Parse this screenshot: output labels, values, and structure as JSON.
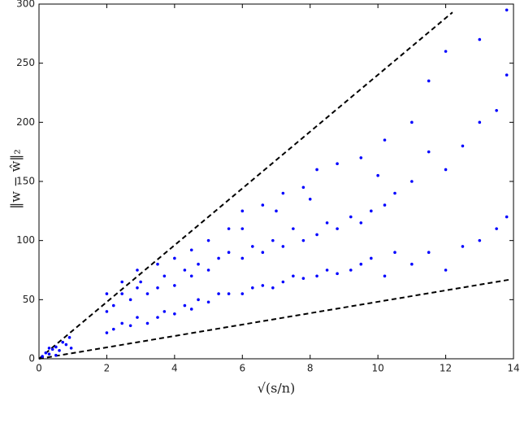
{
  "chart_data": {
    "type": "scatter",
    "xlabel": "√(s/n)",
    "ylabel": "‖w − ŵ‖₂",
    "color": "#0000ff",
    "x": [
      0.1,
      0.2,
      0.3,
      0.4,
      0.5,
      0.6,
      0.7,
      0.8,
      0.9,
      0.95,
      0.5,
      0.3,
      2.0,
      2.0,
      2.0,
      2.2,
      2.2,
      2.45,
      2.45,
      2.45,
      2.7,
      2.7,
      2.9,
      2.9,
      2.9,
      3.2,
      3.2,
      3.5,
      3.5,
      3.5,
      3.7,
      3.7,
      4.0,
      4.0,
      4.0,
      4.3,
      4.3,
      4.5,
      4.5,
      4.5,
      4.7,
      4.7,
      5.0,
      5.0,
      5.0,
      5.3,
      5.3,
      5.6,
      5.6,
      5.6,
      6.0,
      6.0,
      6.0,
      6.3,
      6.3,
      6.6,
      6.6,
      6.6,
      6.9,
      6.9,
      7.2,
      7.2,
      7.2,
      7.5,
      7.5,
      7.8,
      7.8,
      7.8,
      8.2,
      8.2,
      8.2,
      8.5,
      8.5,
      8.8,
      8.8,
      8.8,
      9.2,
      9.2,
      9.5,
      9.5,
      9.5,
      9.8,
      9.8,
      10.2,
      10.2,
      10.2,
      10.5,
      10.5,
      11,
      11,
      11,
      11.5,
      11.5,
      11.5,
      12,
      12,
      12,
      12.5,
      12.5,
      13,
      13,
      13,
      13.5,
      13.5,
      13.8,
      13.8,
      13.8,
      6.0,
      8.0,
      10.0,
      3.0,
      7.0
    ],
    "values": [
      2,
      5,
      4,
      8,
      10,
      7,
      14,
      12,
      18,
      9,
      3,
      9,
      22,
      40,
      55,
      25,
      45,
      30,
      55,
      65,
      28,
      50,
      35,
      60,
      75,
      30,
      55,
      35,
      60,
      80,
      40,
      70,
      38,
      62,
      85,
      45,
      75,
      42,
      70,
      92,
      50,
      80,
      48,
      75,
      100,
      55,
      85,
      55,
      90,
      110,
      55,
      85,
      125,
      60,
      95,
      62,
      90,
      130,
      60,
      100,
      65,
      95,
      140,
      70,
      110,
      68,
      100,
      145,
      70,
      105,
      160,
      75,
      115,
      72,
      110,
      165,
      75,
      120,
      80,
      115,
      170,
      85,
      125,
      70,
      130,
      185,
      90,
      140,
      80,
      150,
      200,
      90,
      175,
      235,
      75,
      160,
      260,
      95,
      180,
      100,
      200,
      270,
      110,
      210,
      120,
      240,
      295,
      110,
      135,
      155,
      65,
      125
    ],
    "lines": [
      {
        "x": [
          0,
          12.2
        ],
        "values": [
          0,
          293
        ],
        "style": "dashed"
      },
      {
        "x": [
          0,
          13.9
        ],
        "values": [
          0,
          67
        ],
        "style": "dashed"
      }
    ],
    "xlim": [
      0,
      14
    ],
    "ylim": [
      0,
      300
    ],
    "xticks": [
      0,
      2,
      4,
      6,
      8,
      10,
      12,
      14
    ],
    "yticks": [
      0,
      50,
      100,
      150,
      200,
      250,
      300
    ]
  }
}
